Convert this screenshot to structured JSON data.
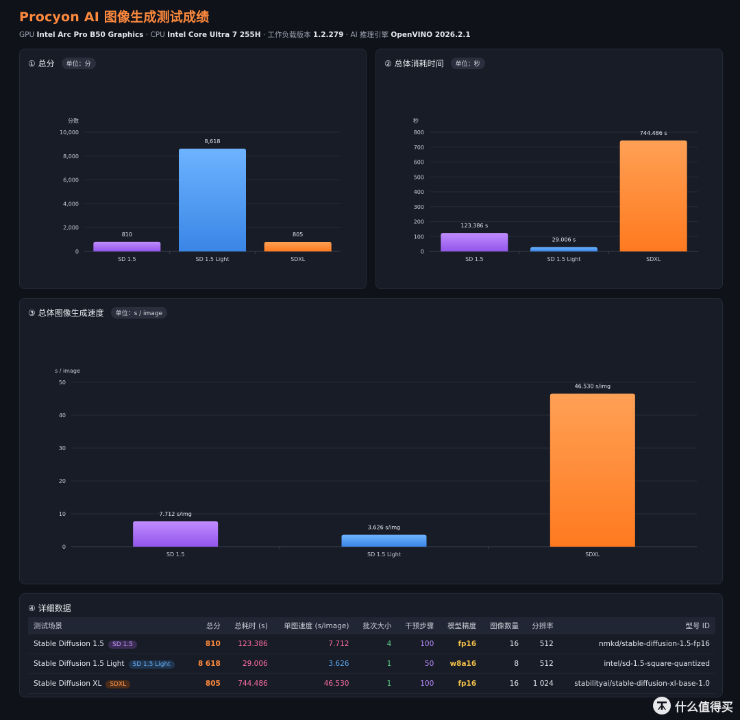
{
  "header": {
    "title": "Procyon AI 图像生成测试成绩",
    "gpu_prefix": "GPU",
    "gpu": "Intel Arc Pro B50 Graphics",
    "cpu_prefix": "· CPU",
    "cpu": "Intel Core Ultra 7 255H",
    "workload_prefix": "· 工作负载版本",
    "workload": "1.2.279",
    "engine_prefix": "· AI 推理引擎",
    "engine": "OpenVINO 2026.2.1"
  },
  "colors": {
    "purple": "#a66bf3",
    "blue": "#4a9bf0",
    "orange": "#ff8a3d",
    "accent": "#ff8a3d"
  },
  "chart_data": [
    {
      "type": "bar",
      "title": "① 总分",
      "unit": "单位：分",
      "ylabel": "分数",
      "categories": [
        "SD 1.5",
        "SD 1.5 Light",
        "SDXL"
      ],
      "values": [
        810,
        8618,
        805
      ],
      "value_labels": [
        "810",
        "8,618",
        "805"
      ],
      "yticks": [
        "0",
        "2,000",
        "4,000",
        "6,000",
        "8,000",
        "10,000"
      ],
      "ylim": [
        0,
        10000
      ],
      "ytick_step": 2000,
      "grid": true
    },
    {
      "type": "bar",
      "title": "② 总体消耗时间",
      "unit": "单位：秒",
      "ylabel": "秒",
      "categories": [
        "SD 1.5",
        "SD 1.5 Light",
        "SDXL"
      ],
      "values": [
        123.386,
        29.006,
        744.486
      ],
      "value_labels": [
        "123.386 s",
        "29.006 s",
        "744.486 s"
      ],
      "yticks": [
        "0",
        "100",
        "200",
        "300",
        "400",
        "500",
        "600",
        "700",
        "800"
      ],
      "ylim": [
        0,
        800
      ],
      "ytick_step": 100,
      "grid": true
    },
    {
      "type": "bar",
      "title": "③ 总体图像生成速度",
      "unit": "单位：s / image",
      "ylabel": "s / image",
      "categories": [
        "SD 1.5",
        "SD 1.5 Light",
        "SDXL"
      ],
      "values": [
        7.712,
        3.626,
        46.53
      ],
      "value_labels": [
        "7.712 s/img",
        "3.626 s/img",
        "46.530 s/img"
      ],
      "yticks": [
        "0",
        "10",
        "20",
        "30",
        "40",
        "50"
      ],
      "ylim": [
        0,
        50
      ],
      "ytick_step": 10,
      "grid": true
    }
  ],
  "table": {
    "title": "④ 详细数据",
    "headers": [
      "测试场景",
      "总分",
      "总耗时 (s)",
      "单图速度 (s/image)",
      "批次大小",
      "干预步骤",
      "模型精度",
      "图像数量",
      "分辨率",
      "型号 ID"
    ],
    "rows": [
      {
        "scene": "Stable Diffusion 1.5",
        "tag": "SD 1.5",
        "score": "810",
        "time": "123.386",
        "speed": "7.712",
        "batch": "4",
        "steps": "100",
        "precision": "fp16",
        "images": "16",
        "resolution": "512",
        "model": "nmkd/stable-diffusion-1.5-fp16"
      },
      {
        "scene": "Stable Diffusion 1.5 Light",
        "tag": "SD 1.5 Light",
        "score": "8 618",
        "time": "29.006",
        "speed": "3.626",
        "batch": "1",
        "steps": "50",
        "precision": "w8a16",
        "images": "8",
        "resolution": "512",
        "model": "intel/sd-1.5-square-quantized"
      },
      {
        "scene": "Stable Diffusion XL",
        "tag": "SDXL",
        "score": "805",
        "time": "744.486",
        "speed": "46.530",
        "batch": "1",
        "steps": "100",
        "precision": "fp16",
        "images": "16",
        "resolution": "1 024",
        "model": "stabilityai/stable-diffusion-xl-base-1.0"
      }
    ]
  },
  "watermark": {
    "icon": "zhi-logo-icon",
    "text": "什么值得买"
  }
}
